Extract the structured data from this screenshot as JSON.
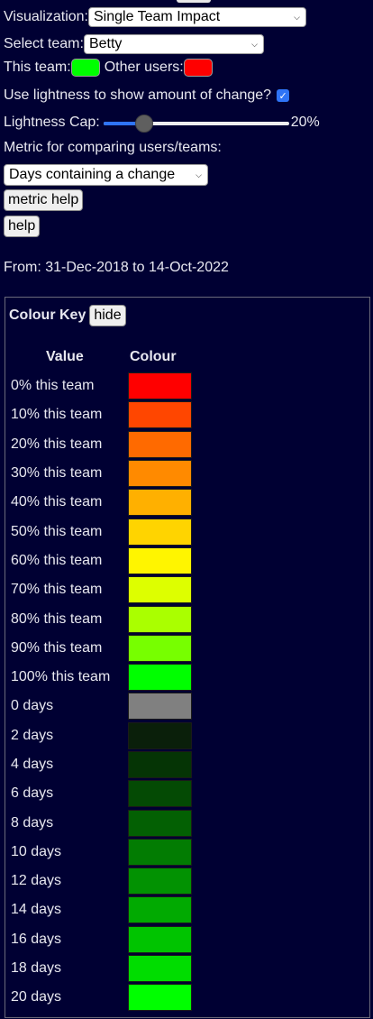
{
  "controls": {
    "visualization_label": "Visualization:",
    "visualization_value": "Single Team Impact",
    "select_team_label": "Select team:",
    "select_team_value": "Betty",
    "this_team_label": "This team:",
    "this_team_color": "#00ff00",
    "other_users_label": "Other users:",
    "other_users_color": "#ff0000",
    "lightness_checkbox_label": "Use lightness to show amount of change?",
    "lightness_checked": true,
    "lightness_cap_label": "Lightness Cap:",
    "lightness_cap_value_text": "20%",
    "lightness_cap_fraction": 0.2,
    "metric_label": "Metric for comparing users/teams:",
    "metric_value": "Days containing a change",
    "metric_help_label": "metric help",
    "help_label": "help",
    "date_range": "From: 31-Dec-2018 to 14-Oct-2022"
  },
  "key": {
    "title": "Colour Key",
    "hide_label": "hide",
    "col_value": "Value",
    "col_colour": "Colour",
    "rows": [
      {
        "label": "0% this team",
        "color": "#ff0000"
      },
      {
        "label": "10% this team",
        "color": "#ff4600"
      },
      {
        "label": "20% this team",
        "color": "#ff6a00"
      },
      {
        "label": "30% this team",
        "color": "#ff8a00"
      },
      {
        "label": "40% this team",
        "color": "#ffb000"
      },
      {
        "label": "50% this team",
        "color": "#ffd400"
      },
      {
        "label": "60% this team",
        "color": "#fff500"
      },
      {
        "label": "70% this team",
        "color": "#ddff00"
      },
      {
        "label": "80% this team",
        "color": "#aaff00"
      },
      {
        "label": "90% this team",
        "color": "#77ff00"
      },
      {
        "label": "100% this team",
        "color": "#00ff00"
      },
      {
        "label": "0 days",
        "color": "#808080"
      },
      {
        "label": "2 days",
        "color": "#0a1f0a"
      },
      {
        "label": "4 days",
        "color": "#053405"
      },
      {
        "label": "6 days",
        "color": "#044a04"
      },
      {
        "label": "8 days",
        "color": "#036003"
      },
      {
        "label": "10 days",
        "color": "#027c02"
      },
      {
        "label": "12 days",
        "color": "#029202"
      },
      {
        "label": "14 days",
        "color": "#01aa01"
      },
      {
        "label": "16 days",
        "color": "#00c400"
      },
      {
        "label": "18 days",
        "color": "#00dd00"
      },
      {
        "label": "20 days",
        "color": "#00ff00"
      }
    ]
  }
}
